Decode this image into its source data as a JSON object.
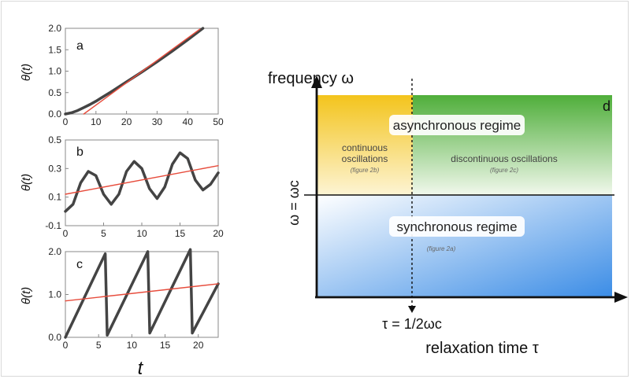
{
  "chart_data": [
    {
      "type": "line",
      "panel_label": "a",
      "ylabel": "θ(t)",
      "xlim": [
        0,
        50
      ],
      "ylim": [
        0,
        2.0
      ],
      "x_ticks": [
        "0",
        "10",
        "20",
        "30",
        "40",
        "50"
      ],
      "y_ticks": [
        "0.0",
        "0.5",
        "1.0",
        "1.5",
        "2.0"
      ],
      "series": [
        {
          "color": "#444444",
          "x": [
            0,
            2,
            4,
            6,
            8,
            10,
            15,
            20,
            25,
            30,
            35,
            40,
            45
          ],
          "y": [
            0.0,
            0.03,
            0.08,
            0.15,
            0.22,
            0.3,
            0.52,
            0.75,
            0.98,
            1.22,
            1.47,
            1.73,
            2.0
          ]
        },
        {
          "color": "#e74c3c",
          "x": [
            6,
            44
          ],
          "y": [
            0.0,
            1.98
          ]
        }
      ]
    },
    {
      "type": "line",
      "panel_label": "b",
      "ylabel": "θ(t)",
      "xlim": [
        0,
        20
      ],
      "ylim": [
        -0.1,
        0.5
      ],
      "x_ticks": [
        "0",
        "5",
        "10",
        "15",
        "20"
      ],
      "y_ticks": [
        "-0.1",
        "0.1",
        "0.3",
        "0.5"
      ],
      "series": [
        {
          "color": "#444444",
          "x": [
            0,
            1,
            2,
            3,
            4,
            5,
            6,
            7,
            8,
            9,
            10,
            11,
            12,
            13,
            14,
            15,
            16,
            17,
            18,
            19,
            20
          ],
          "y": [
            0.0,
            0.05,
            0.2,
            0.28,
            0.25,
            0.12,
            0.05,
            0.12,
            0.28,
            0.35,
            0.3,
            0.16,
            0.09,
            0.17,
            0.33,
            0.41,
            0.37,
            0.22,
            0.15,
            0.19,
            0.27
          ]
        },
        {
          "color": "#e74c3c",
          "x": [
            0,
            20
          ],
          "y": [
            0.12,
            0.32
          ]
        }
      ]
    },
    {
      "type": "line",
      "panel_label": "c",
      "ylabel": "θ(t)",
      "xlabel": "t",
      "xlim": [
        0,
        23
      ],
      "ylim": [
        0,
        2.0
      ],
      "x_ticks": [
        "0",
        "5",
        "10",
        "15",
        "20"
      ],
      "y_ticks": [
        "0.0",
        "1.0",
        "2.0"
      ],
      "series": [
        {
          "color": "#444444",
          "x": [
            0,
            6,
            6.3,
            12.4,
            12.7,
            18.8,
            19.1,
            23
          ],
          "y": [
            0.0,
            1.95,
            0.05,
            2.0,
            0.1,
            2.05,
            0.1,
            1.25
          ]
        },
        {
          "color": "#e74c3c",
          "x": [
            0,
            23
          ],
          "y": [
            0.85,
            1.25
          ]
        }
      ]
    }
  ],
  "diagram": {
    "panel_label": "d",
    "y_axis_label": "frequency ω",
    "y_mid_label": "ω = ωc",
    "x_axis_label": "relaxation time τ",
    "x_mid_label": "τ = 1/2ωc",
    "async_label": "asynchronous regime",
    "sync_label": "synchronous regime",
    "continuous_label_1": "continuous",
    "continuous_label_2": "oscillations",
    "continuous_ref": "(figure 2b)",
    "discontinuous_label": "discontinuous oscillations",
    "discontinuous_ref": "(figure 2c)",
    "sync_ref": "(figure 2a)",
    "colors": {
      "yellow": "#f2c51e",
      "green": "#55b23a",
      "blue": "#3d8fe6",
      "curve": "#444444",
      "fit": "#e74c3c"
    }
  }
}
